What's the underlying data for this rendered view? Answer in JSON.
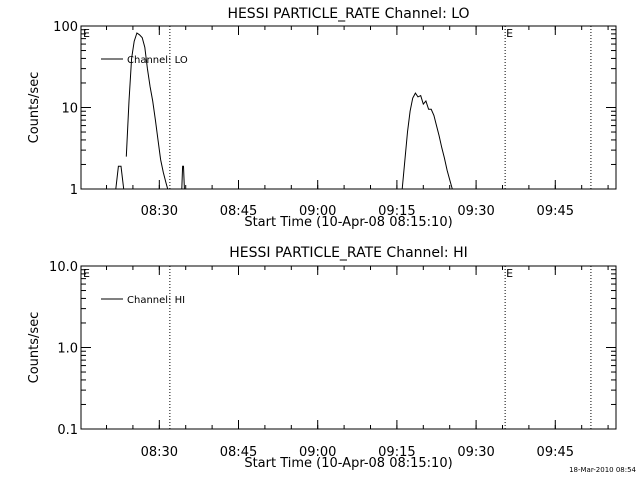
{
  "chart_data": [
    {
      "type": "line",
      "title": "HESSI PARTICLE_RATE Channel: LO",
      "xlabel": "Start Time (10-Apr-08 08:15:10)",
      "ylabel": "Counts/sec",
      "yscale": "log",
      "ylim": [
        1,
        100
      ],
      "xlim": [
        "08:15:10",
        "09:56:30"
      ],
      "x_ticks": [
        "08:30",
        "08:45",
        "09:00",
        "09:15",
        "09:30",
        "09:45"
      ],
      "y_ticks": [
        "1",
        "10",
        "100"
      ],
      "legend": {
        "placement": "top-left",
        "entries": [
          "Channel: LO"
        ]
      },
      "markers": [
        {
          "time": "08:32:00",
          "label": ""
        },
        {
          "time": "09:35:30",
          "label": "E"
        },
        {
          "time": "09:51:45",
          "label": ""
        }
      ],
      "corner_label": "E",
      "series": [
        {
          "name": "Channel: LO",
          "x": [
            "08:21:45",
            "08:22:15",
            "08:22:45",
            "08:23:15",
            "08:23:30",
            "08:23:45",
            "08:24:15",
            "08:24:45",
            "08:25:15",
            "08:25:45",
            "08:26:15",
            "08:26:45",
            "08:27:15",
            "08:27:45",
            "08:28:15",
            "08:28:45",
            "08:29:15",
            "08:29:45",
            "08:30:15",
            "08:30:45",
            "08:31:15",
            "08:31:35",
            "08:31:45",
            "08:32:15",
            "08:32:45",
            "08:33:15",
            "08:33:45",
            "08:34:05",
            "08:34:15",
            "08:34:25",
            "08:34:35",
            "08:34:45"
          ],
          "y": [
            1,
            1.9,
            1.9,
            1,
            null,
            2.5,
            12,
            40,
            65,
            82,
            78,
            72,
            55,
            30,
            18,
            12,
            7,
            4,
            2.3,
            1.6,
            1.2,
            1,
            null,
            null,
            null,
            null,
            null,
            null,
            1,
            1.9,
            1.9,
            1
          ],
          "note": ""
        },
        {
          "name": "Channel: LO",
          "x": [
            "09:16:00",
            "09:16:30",
            "09:17:00",
            "09:17:30",
            "09:18:00",
            "09:18:30",
            "09:19:00",
            "09:19:30",
            "09:20:00",
            "09:20:30",
            "09:21:00",
            "09:21:30",
            "09:22:00",
            "09:22:30",
            "09:23:00",
            "09:23:30",
            "09:24:00",
            "09:24:30",
            "09:25:00",
            "09:25:30"
          ],
          "y": [
            1,
            2.2,
            5,
            9,
            13,
            15,
            13.5,
            14,
            11,
            12,
            9.5,
            9.5,
            8,
            6,
            4.5,
            3.2,
            2.4,
            1.7,
            1.3,
            1
          ]
        }
      ]
    },
    {
      "type": "line",
      "title": "HESSI PARTICLE_RATE Channel: HI",
      "xlabel": "Start Time (10-Apr-08 08:15:10)",
      "ylabel": "Counts/sec",
      "yscale": "log",
      "ylim": [
        0.1,
        10
      ],
      "xlim": [
        "08:15:10",
        "09:56:30"
      ],
      "x_ticks": [
        "08:30",
        "08:45",
        "09:00",
        "09:15",
        "09:30",
        "09:45"
      ],
      "y_ticks": [
        "0.1",
        "1.0",
        "10.0"
      ],
      "legend": {
        "placement": "top-left",
        "entries": [
          "Channel: HI"
        ]
      },
      "markers": [
        {
          "time": "08:32:00",
          "label": ""
        },
        {
          "time": "09:35:30",
          "label": "E"
        },
        {
          "time": "09:51:45",
          "label": ""
        }
      ],
      "corner_label": "E",
      "series": [
        {
          "name": "Channel: HI",
          "x": [],
          "y": []
        }
      ]
    }
  ],
  "footer": {
    "timestamp": "18-Mar-2010 08:54"
  }
}
